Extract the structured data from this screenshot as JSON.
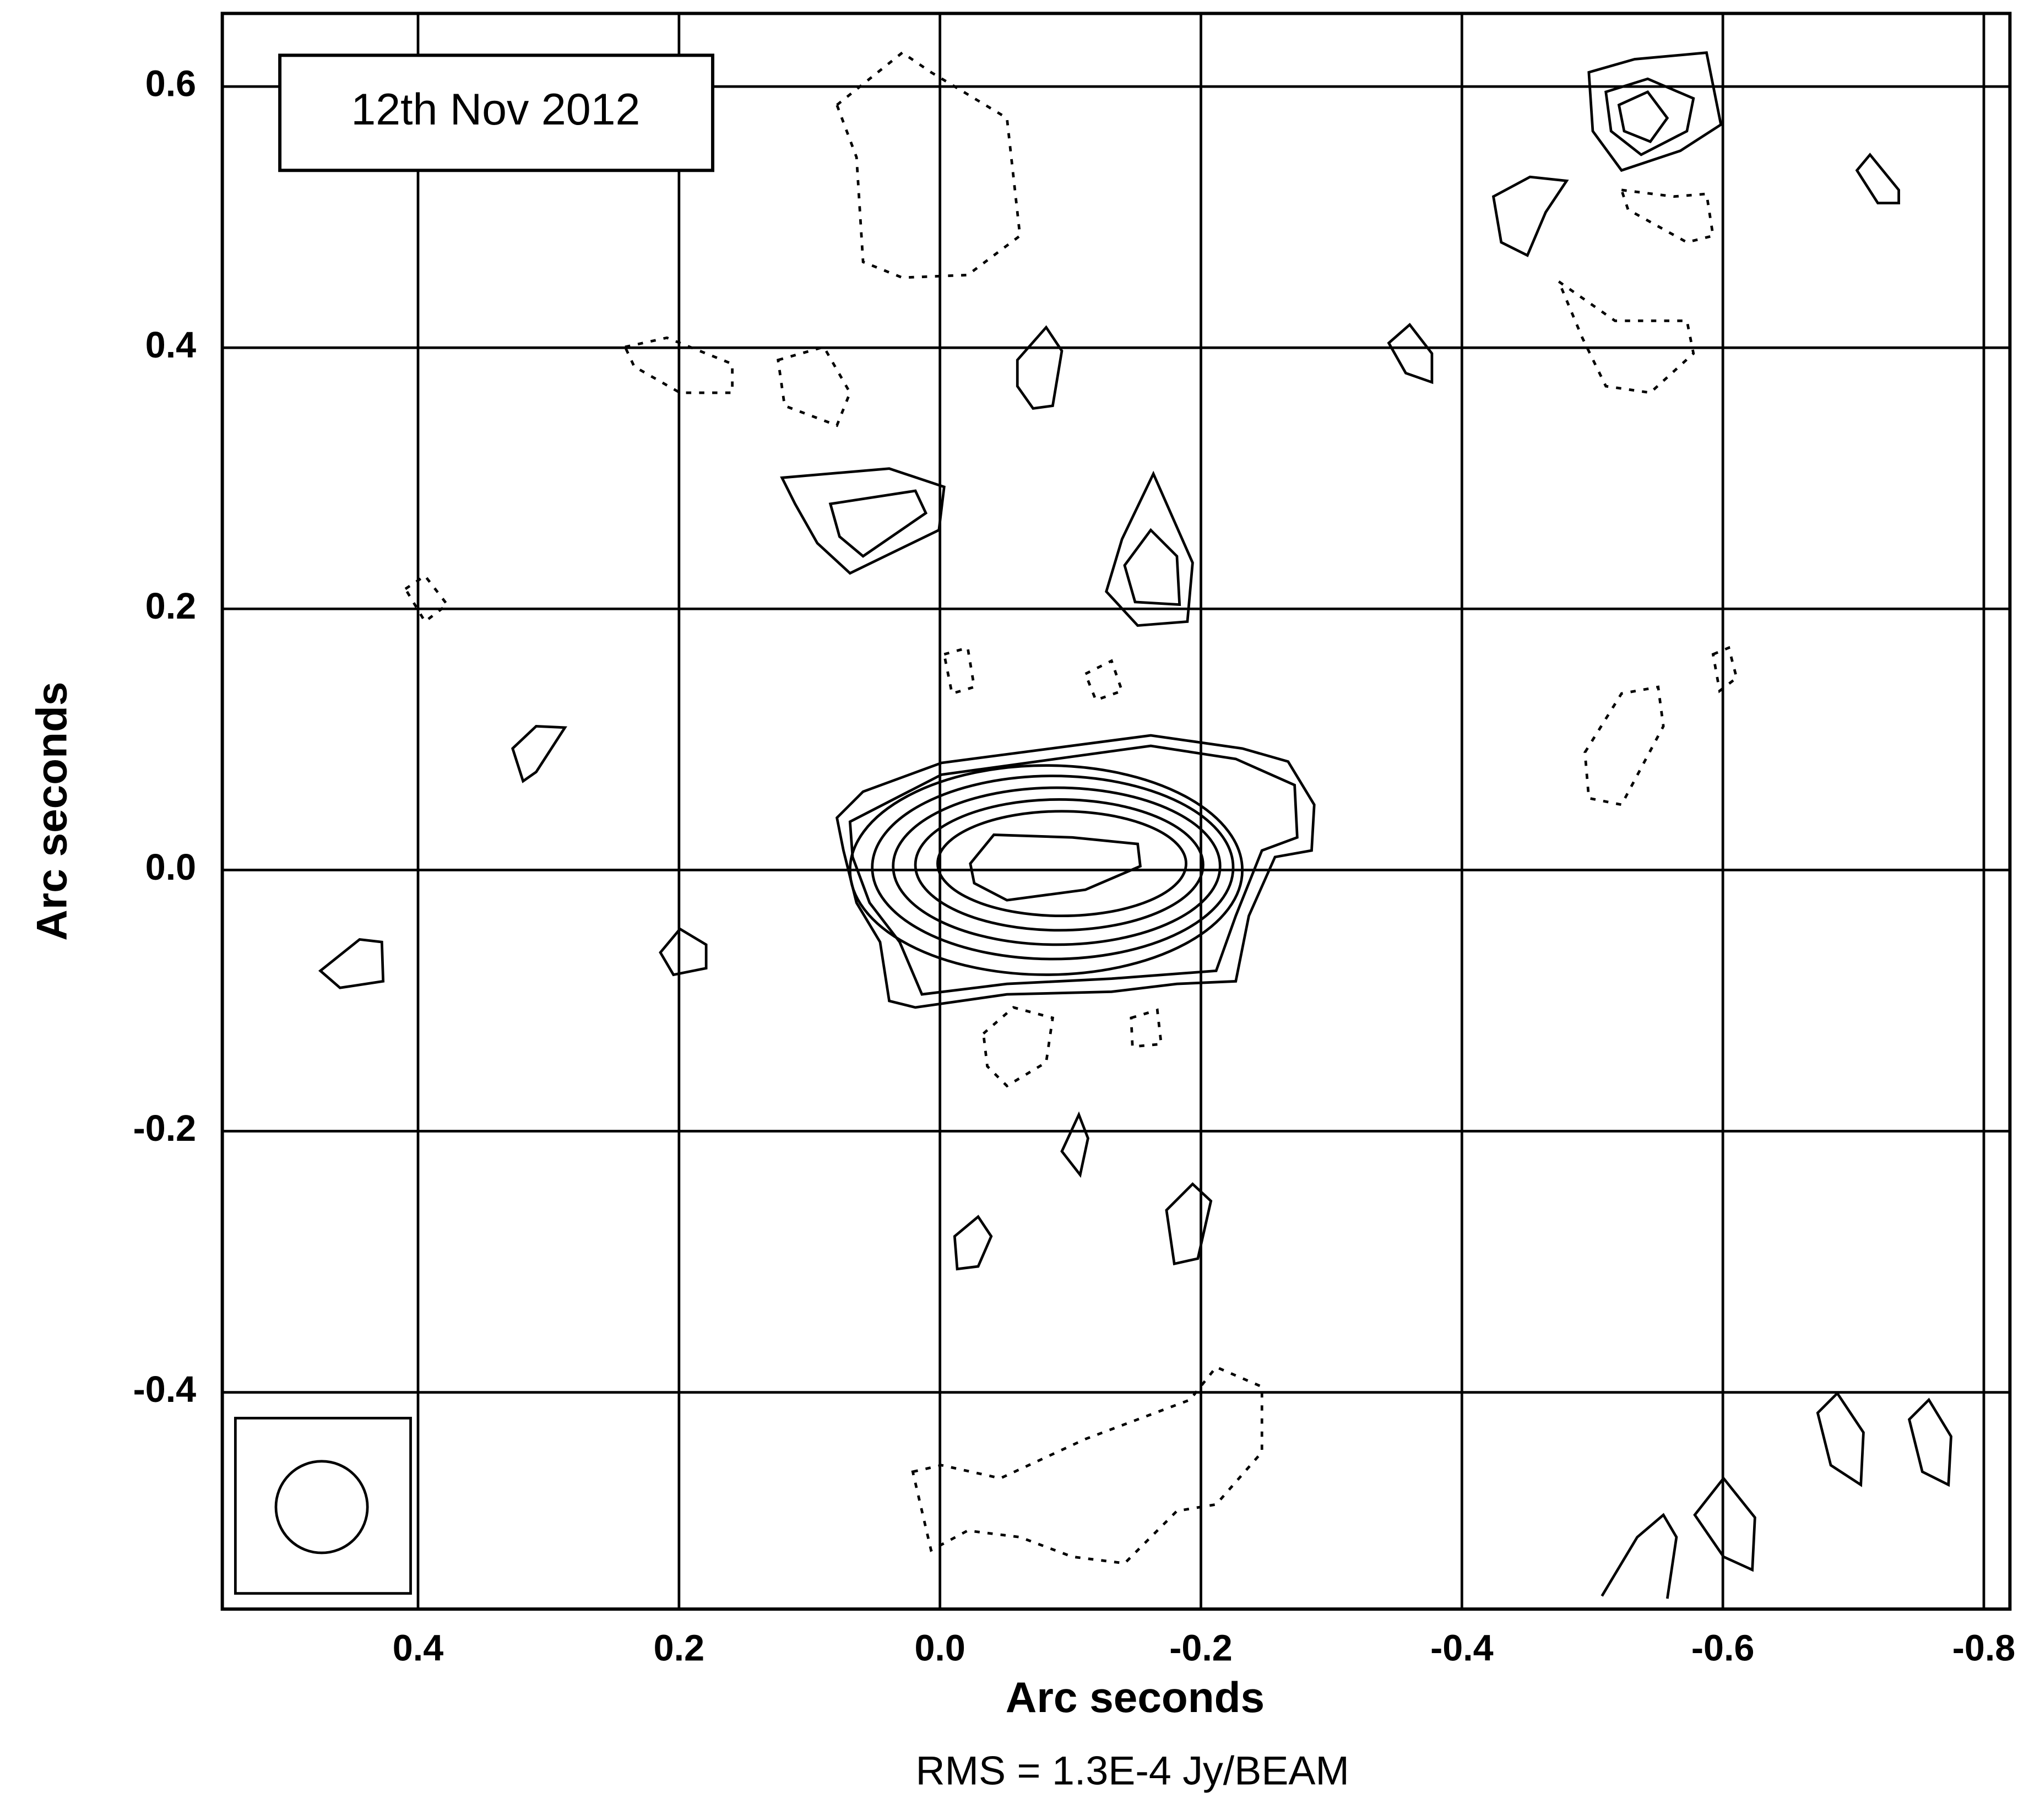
{
  "chart_data": {
    "type": "contour",
    "annotation": "12th Nov 2012",
    "xlabel": "Arc seconds",
    "ylabel": "Arc seconds",
    "caption": "RMS = 1.3E-4 Jy/BEAM",
    "xlim": [
      0.55,
      -0.82
    ],
    "ylim": [
      -0.566,
      0.656
    ],
    "xticks": [
      0.4,
      0.2,
      {
        "value": 0,
        "label": "0.0"
      },
      -0.2,
      -0.4,
      -0.6,
      -0.8
    ],
    "yticks": [
      -0.4,
      -0.2,
      {
        "value": 0,
        "label": "0.0"
      },
      0.2,
      0.4,
      0.6
    ],
    "grid": true,
    "color": "#000000"
  }
}
